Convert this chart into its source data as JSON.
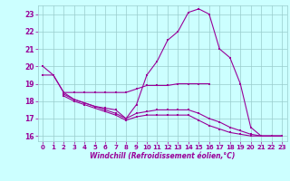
{
  "x": [
    0,
    1,
    2,
    3,
    4,
    5,
    6,
    7,
    8,
    9,
    10,
    11,
    12,
    13,
    14,
    15,
    16,
    17,
    18,
    19,
    20,
    21,
    22,
    23
  ],
  "main_line": [
    20.0,
    19.5,
    18.5,
    18.1,
    17.9,
    17.7,
    17.6,
    17.5,
    17.0,
    17.8,
    19.5,
    20.3,
    21.5,
    22.0,
    23.1,
    23.3,
    23.0,
    21.0,
    20.5,
    19.0,
    16.5,
    16.0,
    16.0,
    16.0
  ],
  "flat_line": [
    19.5,
    19.5,
    18.5,
    18.5,
    18.5,
    18.5,
    18.5,
    18.5,
    18.5,
    18.7,
    18.9,
    18.9,
    18.9,
    19.0,
    19.0,
    19.0,
    19.0,
    null,
    null,
    null,
    null,
    null,
    null,
    null
  ],
  "line3": [
    null,
    null,
    18.4,
    18.1,
    17.9,
    17.7,
    17.5,
    17.3,
    17.0,
    17.3,
    17.4,
    17.5,
    17.5,
    17.5,
    17.5,
    17.3,
    17.0,
    16.8,
    16.5,
    16.3,
    16.1,
    16.0,
    16.0,
    16.0
  ],
  "line4": [
    null,
    null,
    18.3,
    18.0,
    17.8,
    17.6,
    17.4,
    17.2,
    16.9,
    17.1,
    17.2,
    17.2,
    17.2,
    17.2,
    17.2,
    16.9,
    16.6,
    16.4,
    16.2,
    16.1,
    16.0,
    16.0,
    16.0,
    16.0
  ],
  "xlim": [
    -0.5,
    23.5
  ],
  "ylim": [
    15.7,
    23.5
  ],
  "yticks": [
    16,
    17,
    18,
    19,
    20,
    21,
    22,
    23
  ],
  "xticks": [
    0,
    1,
    2,
    3,
    4,
    5,
    6,
    7,
    8,
    9,
    10,
    11,
    12,
    13,
    14,
    15,
    16,
    17,
    18,
    19,
    20,
    21,
    22,
    23
  ],
  "xlabel": "Windchill (Refroidissement éolien,°C)",
  "color": "#990099",
  "bg_color": "#ccffff",
  "grid_color": "#99cccc"
}
